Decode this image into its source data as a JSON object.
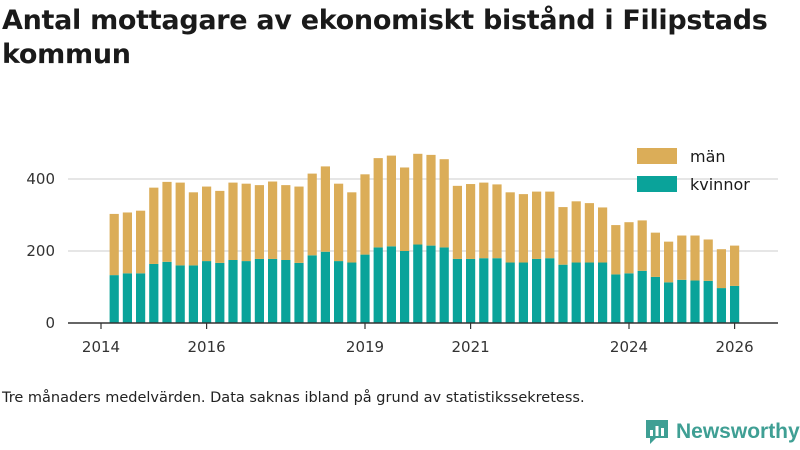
{
  "title": "Antal mottagare av ekonomiskt bistånd i Filipstads kommun",
  "footnote": "Tre månaders medelvärden. Data saknas ibland på grund av statistikssekretess.",
  "brand": {
    "name": "Newsworthy",
    "color": "#3f9f94"
  },
  "colors": {
    "kvinnor": "#0aa39a",
    "man": "#dbad58",
    "grid": "#cccccc",
    "axis": "#333333"
  },
  "chart_data": {
    "type": "bar",
    "stacked": true,
    "title": "Antal mottagare av ekonomiskt bistånd i Filipstads kommun",
    "xlabel": "",
    "ylabel": "",
    "ylim": [
      0,
      500
    ],
    "yticks": [
      0,
      200,
      400
    ],
    "xticks": [
      {
        "label": "2014",
        "year": 2014
      },
      {
        "label": "2016",
        "year": 2016
      },
      {
        "label": "2019",
        "year": 2019
      },
      {
        "label": "2021",
        "year": 2021
      },
      {
        "label": "2024",
        "year": 2024
      },
      {
        "label": "2026",
        "year": 2026
      }
    ],
    "x_start_year": 2014.25,
    "x_step_years": 0.25,
    "legend": {
      "position": "top-right",
      "entries": [
        "män",
        "kvinnor"
      ]
    },
    "series": [
      {
        "name": "kvinnor",
        "color": "#0aa39a",
        "values": [
          133,
          138,
          138,
          164,
          170,
          160,
          160,
          172,
          167,
          175,
          172,
          178,
          178,
          175,
          167,
          188,
          198,
          172,
          168,
          190,
          210,
          213,
          200,
          218,
          215,
          210,
          178,
          178,
          180,
          180,
          168,
          168,
          178,
          180,
          162,
          168,
          168,
          168,
          135,
          138,
          145,
          128,
          113,
          120,
          118,
          117,
          97,
          103
        ]
      },
      {
        "name": "män",
        "color": "#dbad58",
        "values": [
          170,
          169,
          174,
          212,
          222,
          230,
          203,
          207,
          200,
          215,
          215,
          205,
          215,
          208,
          212,
          227,
          237,
          215,
          195,
          223,
          248,
          252,
          232,
          252,
          252,
          245,
          203,
          208,
          210,
          205,
          195,
          190,
          187,
          185,
          160,
          170,
          165,
          153,
          137,
          142,
          140,
          123,
          113,
          123,
          125,
          115,
          108,
          112
        ]
      }
    ]
  }
}
